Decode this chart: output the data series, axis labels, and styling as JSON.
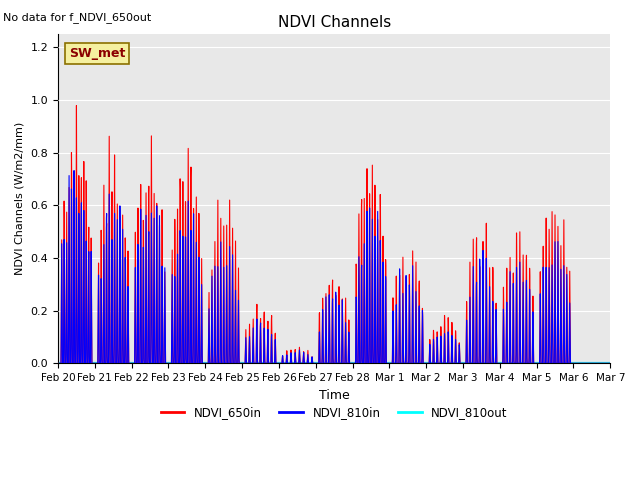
{
  "title": "NDVI Channels",
  "xlabel": "Time",
  "ylabel": "NDVI Channels (W/m2/mm)",
  "no_data_text": "No data for f_NDVI_650out",
  "legend_box_text": "SW_met",
  "ylim": [
    0,
    1.25
  ],
  "background_color": "#e8e8e8",
  "line_650in_color": "red",
  "line_810in_color": "blue",
  "line_810out_color": "cyan",
  "legend_entries": [
    "NDVI_650in",
    "NDVI_810in",
    "NDVI_810out"
  ],
  "tick_labels": [
    "Feb 20",
    "Feb 21",
    "Feb 22",
    "Feb 23",
    "Feb 24",
    "Feb 25",
    "Feb 26",
    "Feb 27",
    "Feb 28",
    "Mar 1",
    "Mar 2",
    "Mar 3",
    "Mar 4",
    "Mar 5",
    "Mar 6",
    "Mar 7"
  ],
  "yticks": [
    0.0,
    0.2,
    0.4,
    0.6,
    0.8,
    1.0,
    1.2
  ],
  "day_envelopes_650": [
    1.04,
    0.92,
    0.94,
    0.9,
    0.74,
    0.27,
    0.07,
    0.4,
    0.87,
    0.52,
    0.2,
    0.58,
    0.56,
    0.69,
    0.0
  ],
  "day_envelopes_810": [
    0.83,
    0.72,
    0.73,
    0.7,
    0.55,
    0.2,
    0.06,
    0.32,
    0.69,
    0.43,
    0.15,
    0.45,
    0.43,
    0.55,
    0.0
  ],
  "n_days": 15,
  "samples_per_day": 200
}
